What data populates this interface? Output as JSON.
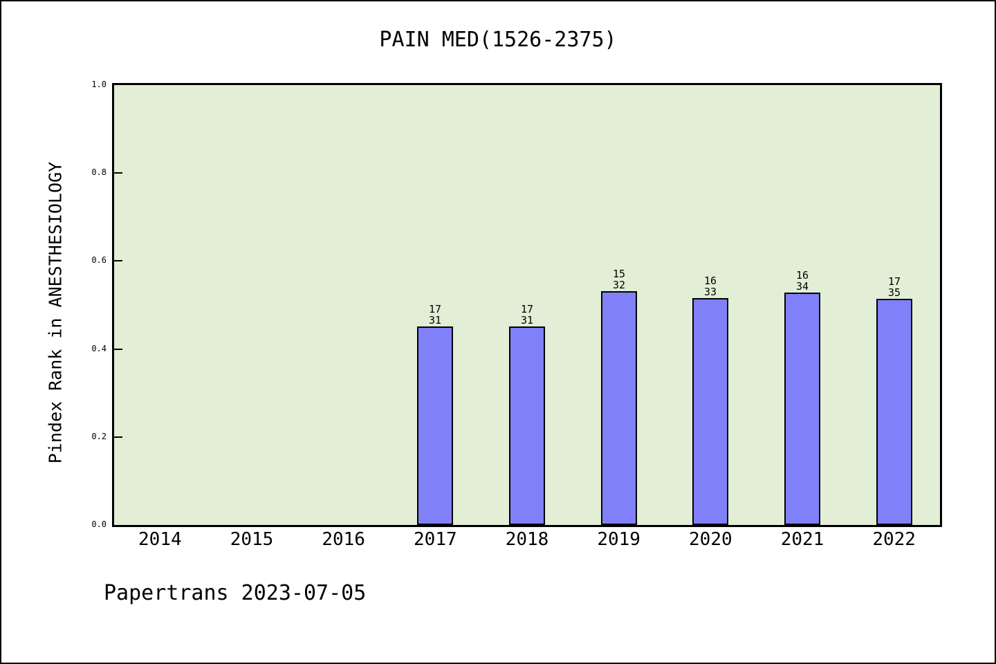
{
  "page": {
    "footer": "Papertrans 2023-07-05"
  },
  "chart_data": {
    "type": "bar",
    "title": "PAIN MED(1526-2375)",
    "ylabel": "Pindex Rank in ANESTHESIOLOGY",
    "xlabel": "",
    "ylim": [
      0,
      1
    ],
    "yticks": [
      "0.0",
      "0.2",
      "0.4",
      "0.6",
      "0.8",
      "1.0"
    ],
    "grid": false,
    "legend": null,
    "categories": [
      "2014",
      "2015",
      "2016",
      "2017",
      "2018",
      "2019",
      "2020",
      "2021",
      "2022"
    ],
    "values": [
      null,
      null,
      null,
      0.452,
      0.452,
      0.531,
      0.515,
      0.529,
      0.514
    ],
    "bar_labels": [
      null,
      null,
      null,
      [
        "17",
        "31"
      ],
      [
        "17",
        "31"
      ],
      [
        "15",
        "32"
      ],
      [
        "16",
        "33"
      ],
      [
        "16",
        "34"
      ],
      [
        "17",
        "35"
      ]
    ],
    "annotation": "bar label format: rank over total, bar height = 1 - rank/total",
    "colors": {
      "bar_fill": "#8080f8",
      "bar_border": "#000000",
      "plot_bg": "#e2eed5",
      "plot_border": "#000000",
      "page_bg": "#ffffff",
      "text": "#000000"
    }
  }
}
